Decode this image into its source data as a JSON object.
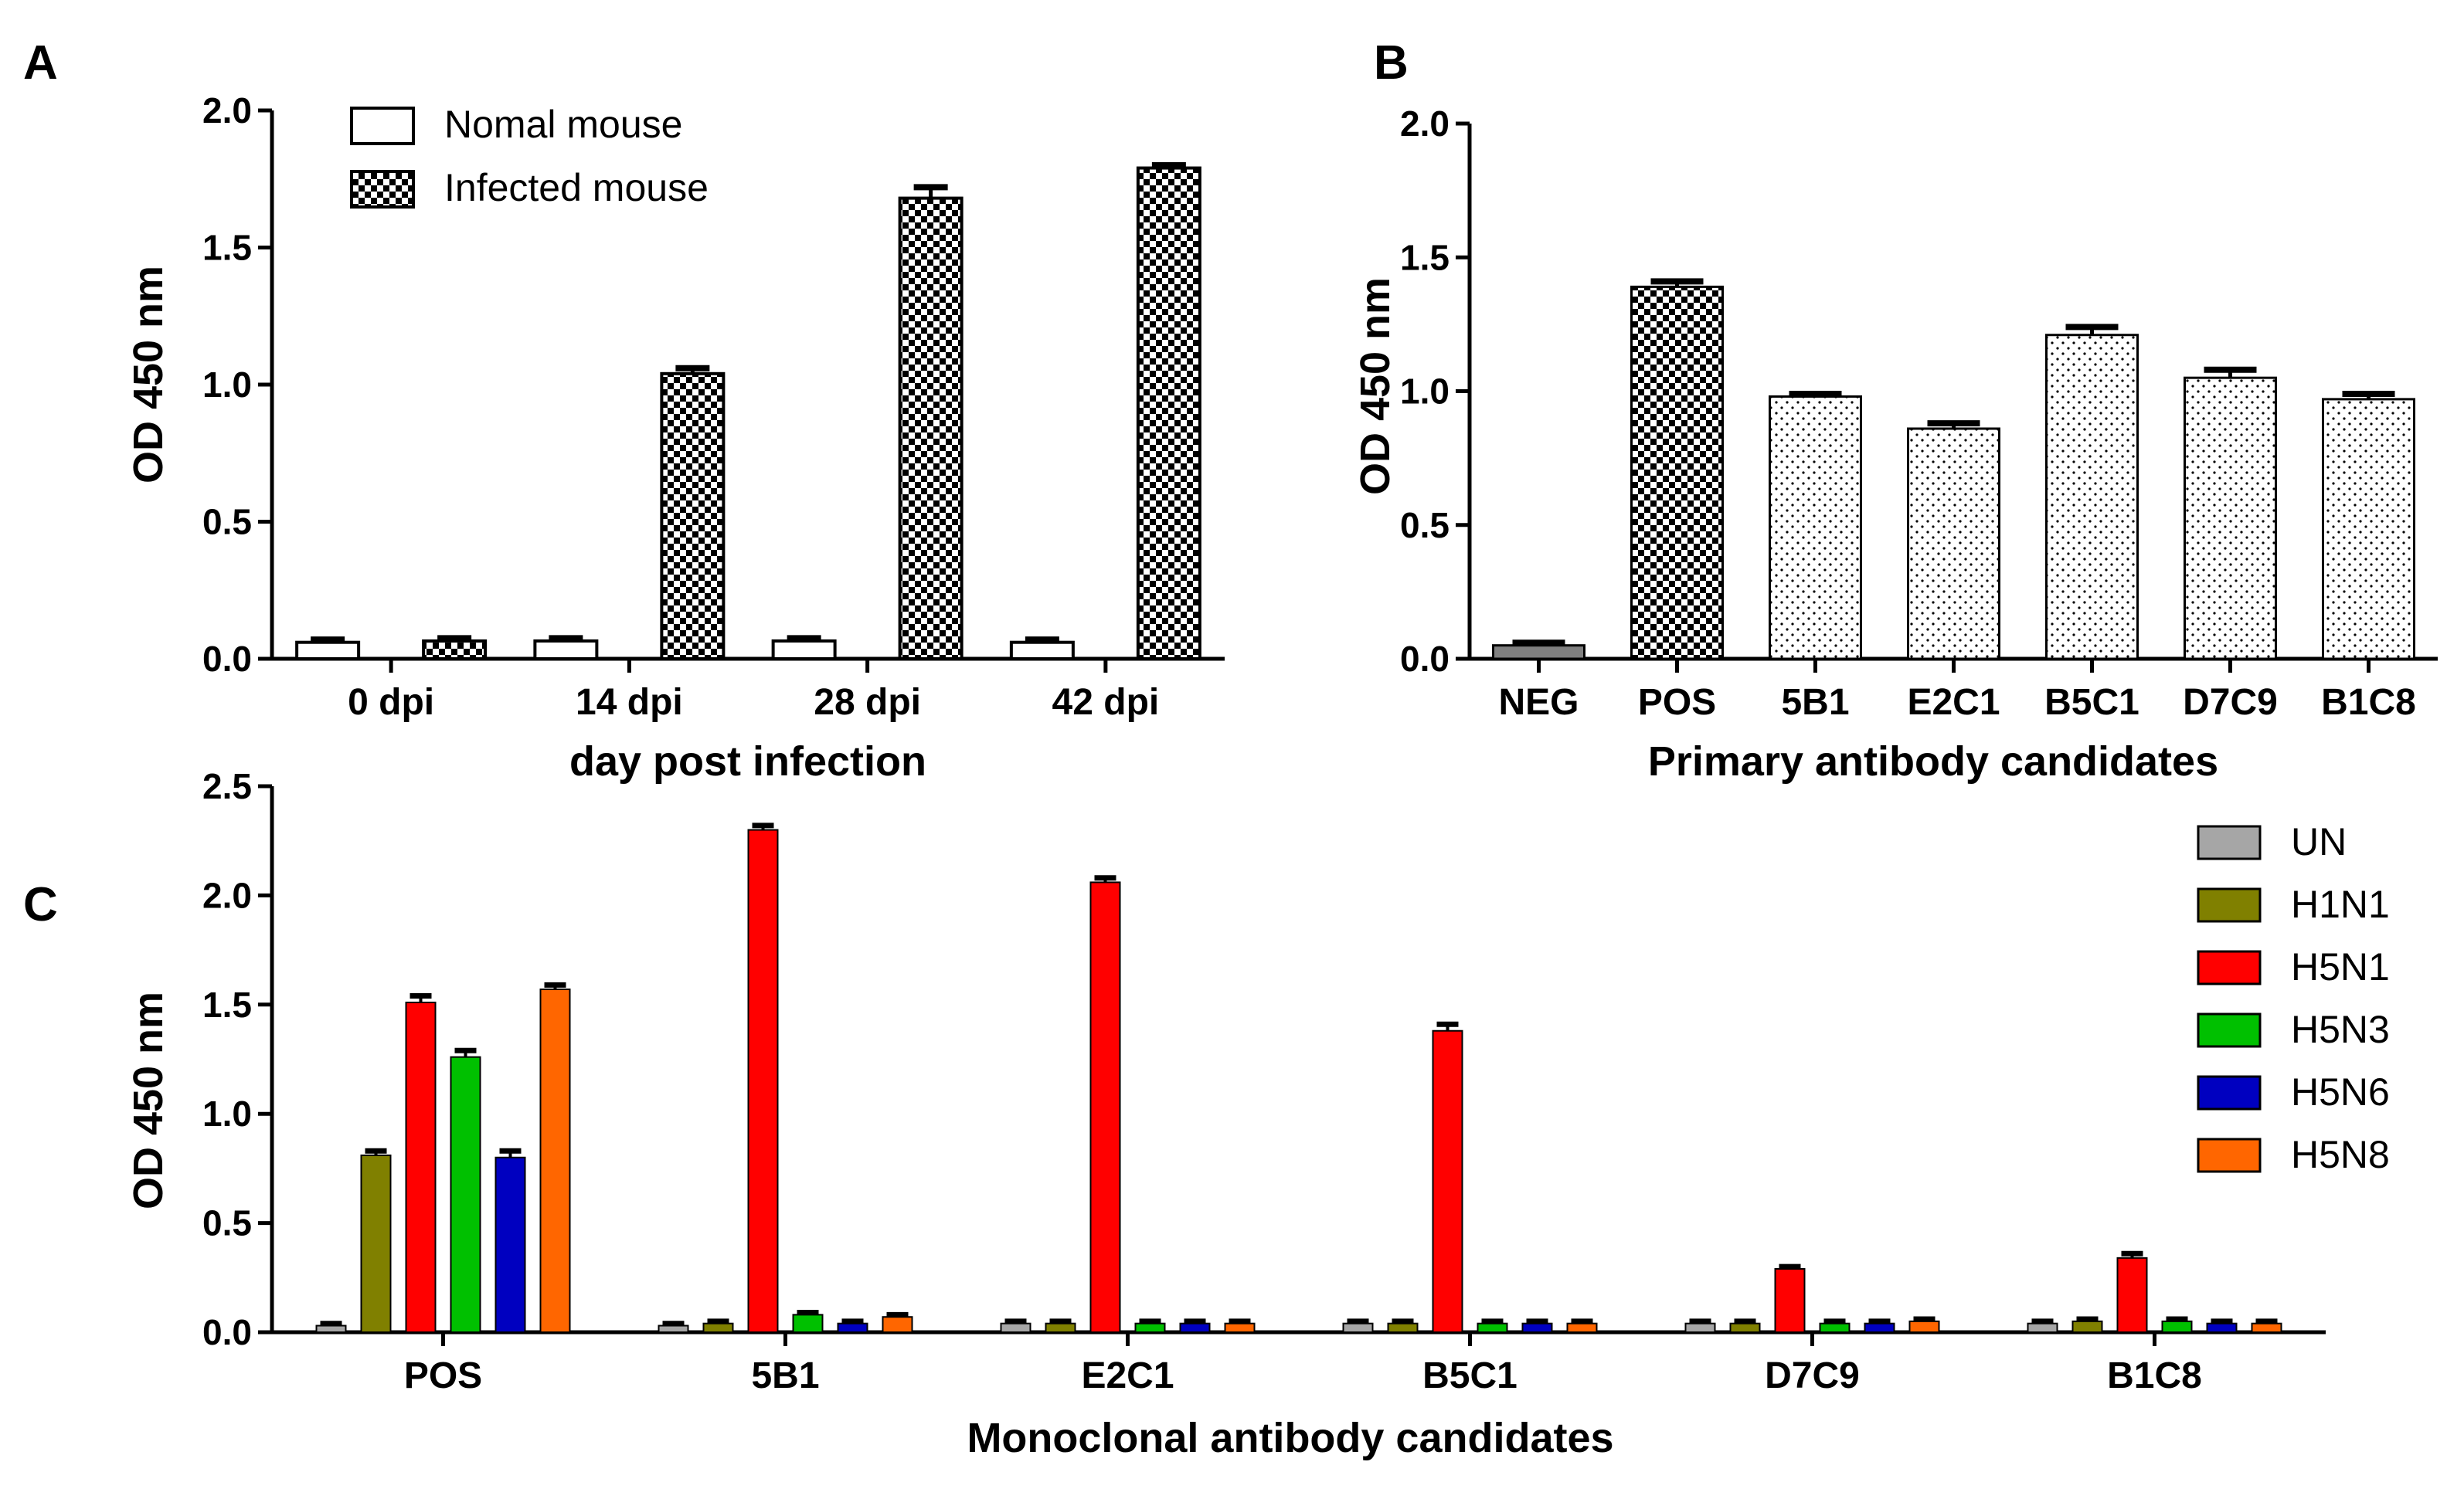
{
  "chart_data": [
    {
      "panel": "A",
      "type": "bar",
      "title": "",
      "xlabel": "day post infection",
      "ylabel": "OD 450 nm",
      "ylim": [
        0,
        2.0
      ],
      "yticks": [
        "0.0",
        "0.5",
        "1.0",
        "1.5",
        "2.0"
      ],
      "categories": [
        "0 dpi",
        "14 dpi",
        "28 dpi",
        "42 dpi"
      ],
      "legend_position": "top-left",
      "series": [
        {
          "name": "Nomal mouse",
          "pattern": "open",
          "values": [
            0.06,
            0.065,
            0.065,
            0.06
          ],
          "errors": [
            0.01,
            0.01,
            0.01,
            0.01
          ]
        },
        {
          "name": "Infected mouse",
          "pattern": "checker",
          "values": [
            0.065,
            1.04,
            1.68,
            1.79
          ],
          "errors": [
            0.01,
            0.02,
            0.04,
            0.01
          ]
        }
      ]
    },
    {
      "panel": "B",
      "type": "bar",
      "title": "",
      "xlabel": "Primary antibody candidates",
      "ylabel": "OD 450 nm",
      "ylim": [
        0,
        2.0
      ],
      "yticks": [
        "0.0",
        "0.5",
        "1.0",
        "1.5",
        "2.0"
      ],
      "categories": [
        "NEG",
        "POS",
        "5B1",
        "E2C1",
        "B5C1",
        "D7C9",
        "B1C8"
      ],
      "values": [
        0.05,
        1.39,
        0.98,
        0.86,
        1.21,
        1.05,
        0.97
      ],
      "errors": [
        0.01,
        0.02,
        0.01,
        0.02,
        0.03,
        0.03,
        0.02
      ],
      "patterns": [
        "gray",
        "checker",
        "dots",
        "dots",
        "dots",
        "dots",
        "dots"
      ]
    },
    {
      "panel": "C",
      "type": "bar",
      "title": "",
      "xlabel": "Monoclonal antibody candidates",
      "ylabel": "OD 450 nm",
      "ylim": [
        0,
        2.5
      ],
      "yticks": [
        "0.0",
        "0.5",
        "1.0",
        "1.5",
        "2.0",
        "2.5"
      ],
      "categories": [
        "POS",
        "5B1",
        "E2C1",
        "B5C1",
        "D7C9",
        "B1C8"
      ],
      "legend_position": "right",
      "series": [
        {
          "name": "UN",
          "color": "#a6a6a6",
          "values": [
            0.03,
            0.03,
            0.04,
            0.04,
            0.04,
            0.04
          ],
          "errors": [
            0.01,
            0.01,
            0.01,
            0.01,
            0.01,
            0.01
          ]
        },
        {
          "name": "H1N1",
          "color": "#808000",
          "values": [
            0.81,
            0.04,
            0.04,
            0.04,
            0.04,
            0.05
          ],
          "errors": [
            0.02,
            0.01,
            0.01,
            0.01,
            0.01,
            0.01
          ]
        },
        {
          "name": "H5N1",
          "color": "#ff0000",
          "values": [
            1.51,
            2.3,
            2.06,
            1.38,
            0.29,
            0.34
          ],
          "errors": [
            0.03,
            0.02,
            0.02,
            0.03,
            0.01,
            0.02
          ]
        },
        {
          "name": "H5N3",
          "color": "#00c000",
          "values": [
            1.26,
            0.08,
            0.04,
            0.04,
            0.04,
            0.05
          ],
          "errors": [
            0.03,
            0.01,
            0.01,
            0.01,
            0.01,
            0.01
          ]
        },
        {
          "name": "H5N6",
          "color": "#0000c0",
          "values": [
            0.8,
            0.04,
            0.04,
            0.04,
            0.04,
            0.04
          ],
          "errors": [
            0.03,
            0.01,
            0.01,
            0.01,
            0.01,
            0.01
          ]
        },
        {
          "name": "H5N8",
          "color": "#ff6600",
          "values": [
            1.57,
            0.07,
            0.04,
            0.04,
            0.05,
            0.04
          ],
          "errors": [
            0.02,
            0.01,
            0.01,
            0.01,
            0.01,
            0.01
          ]
        }
      ]
    }
  ]
}
